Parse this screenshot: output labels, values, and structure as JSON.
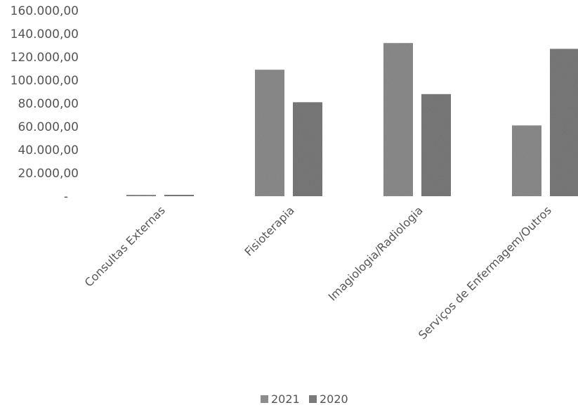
{
  "chart_data": {
    "type": "bar",
    "categories": [
      "Consultas Externas",
      "Fisioterapia",
      "Imagiologia/Radiologia",
      "Serviços de Enfermagem/Outros"
    ],
    "series": [
      {
        "name": "2021",
        "values": [
          1000,
          109000,
          132000,
          61000
        ],
        "color": "#8c8c8c"
      },
      {
        "name": "2020",
        "values": [
          1000,
          81000,
          88000,
          127000
        ],
        "color": "#7a7a7a"
      }
    ],
    "yticks": [
      "-",
      "20.000,00",
      "40.000,00",
      "60.000,00",
      "80.000,00",
      "100.000,00",
      "120.000,00",
      "140.000,00",
      "160.000,00"
    ],
    "ylim": [
      0,
      160000
    ],
    "grid": false,
    "legend_position": "bottom"
  }
}
